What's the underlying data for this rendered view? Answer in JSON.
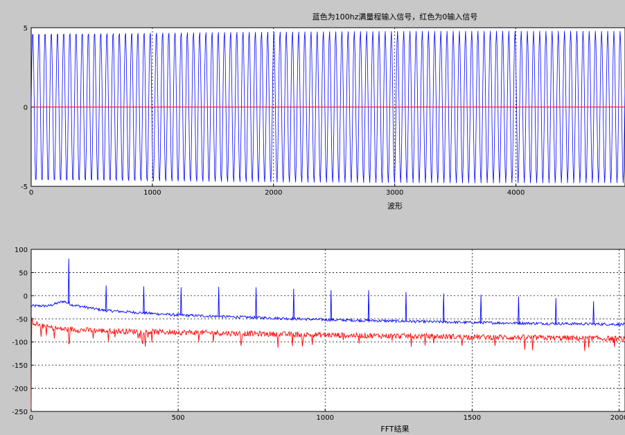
{
  "chart_data": [
    {
      "type": "line",
      "title": "蓝色为100hz满量程输入信号，红色为0输入信号",
      "xlabel": "波形",
      "ylabel": "",
      "xlim": [
        0,
        4900
      ],
      "ylim": [
        -5,
        5
      ],
      "x_ticks": [
        "0",
        "1000",
        "2000",
        "3000",
        "4000"
      ],
      "y_ticks": [
        "5",
        "0",
        "-5"
      ],
      "grid": true,
      "series": [
        {
          "color": "#0000ff",
          "form": "sine",
          "amplitude": 4.8,
          "cycles_per_1000_samples": 19.6
        },
        {
          "color": "#ff0000",
          "form": "constant",
          "value": 0
        }
      ]
    },
    {
      "type": "line",
      "title": "",
      "xlabel": "FFT结果",
      "ylabel": "",
      "xlim": [
        0,
        2020
      ],
      "ylim": [
        -250,
        100
      ],
      "x_ticks": [
        "0",
        "500",
        "1000",
        "1500",
        "2000"
      ],
      "y_ticks": [
        "100",
        "50",
        "0",
        "-50",
        "-100",
        "-150",
        "-200",
        "-250"
      ],
      "grid": true,
      "series": [
        {
          "color": "#0000ff",
          "baseline": [
            [
              0,
              -22
            ],
            [
              60,
              -22
            ],
            [
              110,
              -12
            ],
            [
              140,
              -20
            ],
            [
              250,
              -32
            ],
            [
              500,
              -42
            ],
            [
              750,
              -47
            ],
            [
              1000,
              -52
            ],
            [
              1250,
              -55
            ],
            [
              1500,
              -58
            ],
            [
              1750,
              -60
            ],
            [
              2020,
              -62
            ]
          ],
          "peaks": [
            [
              128,
              80
            ],
            [
              255,
              22
            ],
            [
              383,
              20
            ],
            [
              510,
              18
            ],
            [
              638,
              19
            ],
            [
              765,
              18
            ],
            [
              893,
              15
            ],
            [
              1020,
              12
            ],
            [
              1148,
              12
            ],
            [
              1275,
              8
            ],
            [
              1403,
              5
            ],
            [
              1530,
              2
            ],
            [
              1658,
              -2
            ],
            [
              1785,
              -5
            ],
            [
              1913,
              -12
            ]
          ]
        },
        {
          "color": "#ff0000",
          "baseline": [
            [
              0,
              -55
            ],
            [
              30,
              -65
            ],
            [
              100,
              -72
            ],
            [
              250,
              -76
            ],
            [
              500,
              -79
            ],
            [
              750,
              -82
            ],
            [
              1000,
              -85
            ],
            [
              1250,
              -87
            ],
            [
              1500,
              -89
            ],
            [
              1750,
              -91
            ],
            [
              2020,
              -93
            ]
          ],
          "start_drop": [
            [
              0,
              -250
            ],
            [
              2,
              -48
            ]
          ]
        }
      ]
    }
  ]
}
